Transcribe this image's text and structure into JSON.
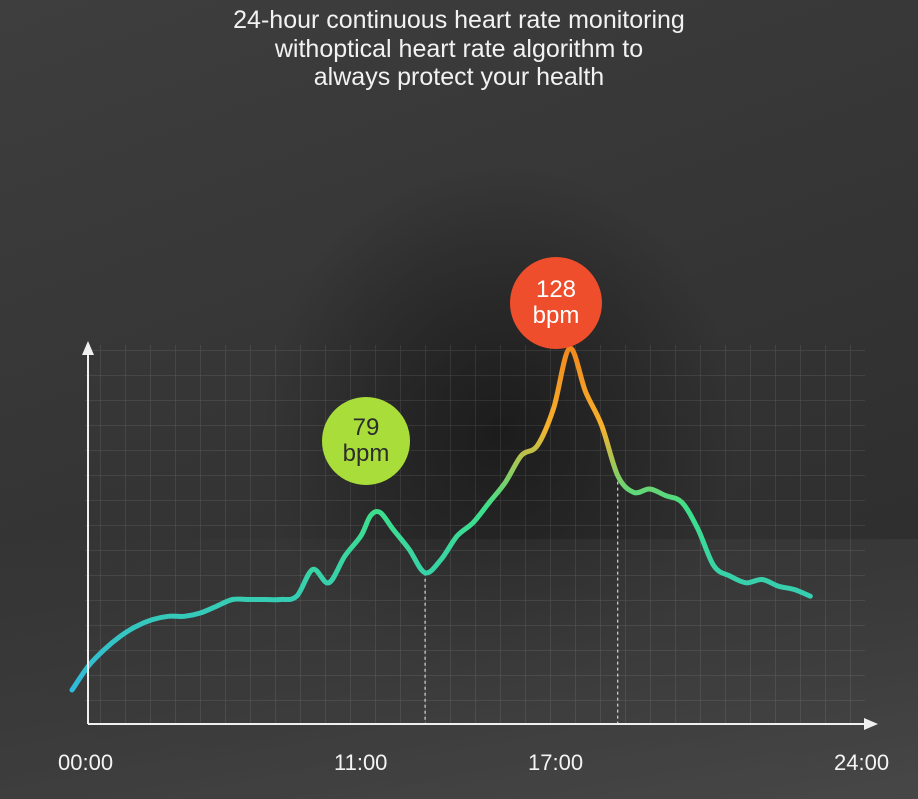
{
  "heading": {
    "line1": "24-hour continuous heart rate monitoring",
    "line2": "withoptical heart rate algorithm to",
    "line3": "always protect your health"
  },
  "colors": {
    "low": "#2fb8e0",
    "mid": "#3de08a",
    "high": "#f7b22c",
    "peak": "#f28a1e",
    "bubble_green": "#a9de3a",
    "bubble_red": "#ee4e2c"
  },
  "chart_data": {
    "type": "line",
    "x_unit": "hour",
    "xlim": [
      0,
      24
    ],
    "x_tick_labels": [
      "00:00",
      "11:00",
      "17:00",
      "24:00"
    ],
    "grid": true,
    "annotations": [
      {
        "x": 11,
        "value": "79",
        "unit": "bpm"
      },
      {
        "x": 17,
        "value": "128",
        "unit": "bpm"
      }
    ],
    "series": [
      {
        "x": [
          0.0,
          0.5,
          1.0,
          1.5,
          2.0,
          2.5,
          3.0,
          3.5,
          4.0,
          4.5,
          5.0,
          5.5,
          6.0,
          6.5,
          7.0,
          7.5,
          8.0,
          8.5,
          9.0,
          9.3,
          9.6,
          10.0,
          10.5,
          11.0,
          11.5,
          12.0,
          12.5,
          13.0,
          13.5,
          14.0,
          14.5,
          15.0,
          15.5,
          16.0,
          16.5,
          17.0,
          17.5,
          18.0,
          18.5,
          19.0,
          19.5,
          20.0,
          20.5,
          21.0,
          21.5,
          22.0,
          22.5,
          23.0
        ],
        "y": [
          26,
          33,
          38,
          42,
          45,
          47,
          48,
          48,
          49,
          51,
          53,
          53,
          53,
          53,
          54,
          62,
          58,
          66,
          72,
          78,
          79,
          74,
          68,
          61,
          65,
          72,
          76,
          82,
          88,
          96,
          99,
          110,
          128,
          115,
          105,
          90,
          85,
          86,
          84,
          82,
          74,
          63,
          60,
          58,
          59,
          57,
          56,
          54
        ]
      }
    ]
  }
}
